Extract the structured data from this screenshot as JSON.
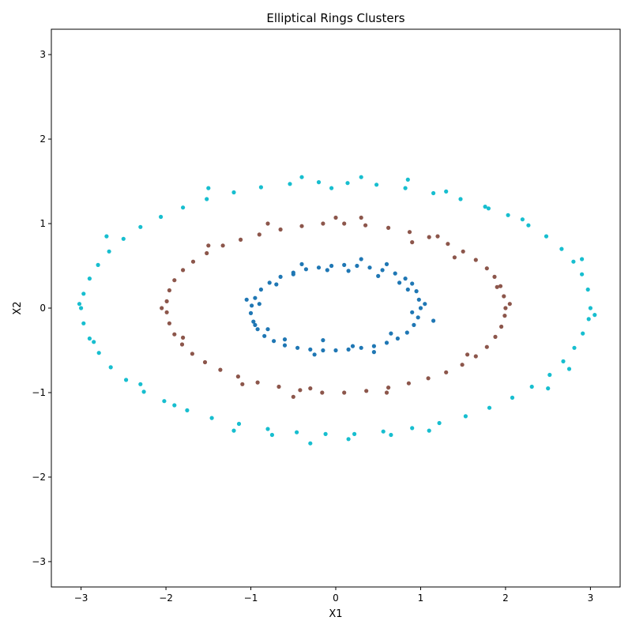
{
  "chart_data": {
    "type": "scatter",
    "title": "Elliptical Rings Clusters",
    "xlabel": "X1",
    "ylabel": "X2",
    "xlim": [
      -3.35,
      3.35
    ],
    "ylim": [
      -3.3,
      3.3
    ],
    "xticks": [
      -3,
      -2,
      -1,
      0,
      1,
      2,
      3
    ],
    "yticks": [
      -3,
      -2,
      -1,
      0,
      1,
      2,
      3
    ],
    "tick_labels_x": [
      "−3",
      "−2",
      "−1",
      "0",
      "1",
      "2",
      "3"
    ],
    "tick_labels_y": [
      "−3",
      "−2",
      "−1",
      "0",
      "1",
      "2",
      "3"
    ],
    "grid": false,
    "legend": "none",
    "series": [
      {
        "color": "#1f77b4",
        "points": [
          [
            1.0,
            0.0
          ],
          [
            0.98,
            0.1
          ],
          [
            0.95,
            0.2
          ],
          [
            0.9,
            0.29
          ],
          [
            0.82,
            0.35
          ],
          [
            0.7,
            0.41
          ],
          [
            0.55,
            0.45
          ],
          [
            0.4,
            0.48
          ],
          [
            0.25,
            0.5
          ],
          [
            0.1,
            0.51
          ],
          [
            -0.05,
            0.5
          ],
          [
            -0.2,
            0.48
          ],
          [
            -0.35,
            0.46
          ],
          [
            -0.5,
            0.42
          ],
          [
            -0.65,
            0.37
          ],
          [
            -0.78,
            0.3
          ],
          [
            -0.88,
            0.22
          ],
          [
            -0.95,
            0.12
          ],
          [
            -0.99,
            0.03
          ],
          [
            -1.0,
            -0.06
          ],
          [
            -0.97,
            -0.16
          ],
          [
            -0.92,
            -0.25
          ],
          [
            -0.84,
            -0.33
          ],
          [
            -0.73,
            -0.39
          ],
          [
            -0.6,
            -0.44
          ],
          [
            -0.45,
            -0.47
          ],
          [
            -0.3,
            -0.49
          ],
          [
            -0.15,
            -0.5
          ],
          [
            0.0,
            -0.5
          ],
          [
            0.15,
            -0.49
          ],
          [
            0.3,
            -0.47
          ],
          [
            0.45,
            -0.45
          ],
          [
            0.6,
            -0.41
          ],
          [
            0.73,
            -0.36
          ],
          [
            0.84,
            -0.29
          ],
          [
            0.92,
            -0.2
          ],
          [
            0.97,
            -0.11
          ],
          [
            0.3,
            0.58
          ],
          [
            -0.1,
            0.45
          ],
          [
            0.6,
            0.52
          ],
          [
            -0.5,
            0.4
          ],
          [
            -0.9,
            0.05
          ],
          [
            0.9,
            -0.05
          ],
          [
            -0.6,
            -0.37
          ],
          [
            0.45,
            -0.52
          ],
          [
            -0.25,
            -0.55
          ],
          [
            1.05,
            0.05
          ],
          [
            -1.05,
            0.1
          ],
          [
            0.15,
            0.44
          ],
          [
            -0.4,
            0.52
          ],
          [
            0.75,
            0.3
          ],
          [
            -0.8,
            -0.25
          ],
          [
            0.65,
            -0.3
          ],
          [
            1.15,
            -0.15
          ],
          [
            -0.95,
            -0.2
          ],
          [
            0.2,
            -0.45
          ],
          [
            -0.15,
            -0.38
          ],
          [
            0.85,
            0.22
          ],
          [
            -0.7,
            0.28
          ],
          [
            0.5,
            0.38
          ]
        ]
      },
      {
        "color": "#8c564b",
        "points": [
          [
            2.0,
            0.0
          ],
          [
            1.98,
            0.14
          ],
          [
            1.94,
            0.26
          ],
          [
            1.87,
            0.37
          ],
          [
            1.78,
            0.47
          ],
          [
            1.65,
            0.57
          ],
          [
            1.5,
            0.67
          ],
          [
            1.32,
            0.76
          ],
          [
            1.1,
            0.84
          ],
          [
            0.87,
            0.9
          ],
          [
            0.62,
            0.95
          ],
          [
            0.35,
            0.98
          ],
          [
            0.1,
            1.0
          ],
          [
            -0.15,
            1.0
          ],
          [
            -0.4,
            0.97
          ],
          [
            -0.65,
            0.93
          ],
          [
            -0.9,
            0.87
          ],
          [
            -1.12,
            0.81
          ],
          [
            -1.33,
            0.74
          ],
          [
            -1.52,
            0.65
          ],
          [
            -1.68,
            0.55
          ],
          [
            -1.8,
            0.45
          ],
          [
            -1.9,
            0.33
          ],
          [
            -1.96,
            0.21
          ],
          [
            -1.99,
            0.08
          ],
          [
            -1.99,
            -0.05
          ],
          [
            -1.96,
            -0.18
          ],
          [
            -1.9,
            -0.31
          ],
          [
            -1.81,
            -0.43
          ],
          [
            -1.69,
            -0.54
          ],
          [
            -1.54,
            -0.64
          ],
          [
            -1.36,
            -0.73
          ],
          [
            -1.15,
            -0.81
          ],
          [
            -0.92,
            -0.88
          ],
          [
            -0.67,
            -0.93
          ],
          [
            -0.42,
            -0.97
          ],
          [
            -0.16,
            -1.0
          ],
          [
            0.1,
            -1.0
          ],
          [
            0.36,
            -0.98
          ],
          [
            0.62,
            -0.94
          ],
          [
            0.86,
            -0.89
          ],
          [
            1.09,
            -0.83
          ],
          [
            1.3,
            -0.76
          ],
          [
            1.49,
            -0.67
          ],
          [
            1.65,
            -0.57
          ],
          [
            1.78,
            -0.46
          ],
          [
            1.88,
            -0.34
          ],
          [
            1.95,
            -0.22
          ],
          [
            1.99,
            -0.09
          ],
          [
            0.9,
            0.78
          ],
          [
            -0.5,
            -1.05
          ],
          [
            1.2,
            0.85
          ],
          [
            -1.5,
            0.74
          ],
          [
            1.55,
            -0.55
          ],
          [
            -0.8,
            1.0
          ],
          [
            0.3,
            1.07
          ],
          [
            -1.8,
            -0.35
          ],
          [
            1.9,
            0.25
          ],
          [
            -0.3,
            -0.95
          ],
          [
            0.6,
            -1.0
          ],
          [
            -2.05,
            0.0
          ],
          [
            2.05,
            0.05
          ],
          [
            0.0,
            1.07
          ],
          [
            -1.1,
            -0.9
          ],
          [
            1.4,
            0.6
          ]
        ]
      },
      {
        "color": "#17becf",
        "points": [
          [
            3.0,
            0.0
          ],
          [
            2.97,
            0.22
          ],
          [
            2.9,
            0.4
          ],
          [
            2.8,
            0.55
          ],
          [
            2.66,
            0.7
          ],
          [
            2.48,
            0.85
          ],
          [
            2.27,
            0.98
          ],
          [
            2.03,
            1.1
          ],
          [
            1.76,
            1.2
          ],
          [
            1.47,
            1.29
          ],
          [
            1.15,
            1.36
          ],
          [
            0.82,
            1.42
          ],
          [
            0.48,
            1.46
          ],
          [
            0.14,
            1.48
          ],
          [
            -0.2,
            1.49
          ],
          [
            -0.54,
            1.47
          ],
          [
            -0.88,
            1.43
          ],
          [
            -1.2,
            1.37
          ],
          [
            -1.52,
            1.29
          ],
          [
            -1.8,
            1.19
          ],
          [
            -2.06,
            1.08
          ],
          [
            -2.3,
            0.96
          ],
          [
            -2.5,
            0.82
          ],
          [
            -2.67,
            0.67
          ],
          [
            -2.8,
            0.51
          ],
          [
            -2.9,
            0.35
          ],
          [
            -2.97,
            0.17
          ],
          [
            -3.0,
            0.0
          ],
          [
            -2.97,
            -0.18
          ],
          [
            -2.9,
            -0.36
          ],
          [
            -2.79,
            -0.53
          ],
          [
            -2.65,
            -0.7
          ],
          [
            -2.47,
            -0.85
          ],
          [
            -2.26,
            -0.99
          ],
          [
            -2.02,
            -1.1
          ],
          [
            -1.75,
            -1.21
          ],
          [
            -1.46,
            -1.3
          ],
          [
            -1.14,
            -1.37
          ],
          [
            -0.8,
            -1.43
          ],
          [
            -0.46,
            -1.47
          ],
          [
            -0.12,
            -1.49
          ],
          [
            0.22,
            -1.49
          ],
          [
            0.56,
            -1.46
          ],
          [
            0.9,
            -1.42
          ],
          [
            1.22,
            -1.36
          ],
          [
            1.53,
            -1.28
          ],
          [
            1.81,
            -1.18
          ],
          [
            2.08,
            -1.06
          ],
          [
            2.31,
            -0.93
          ],
          [
            2.52,
            -0.79
          ],
          [
            2.68,
            -0.63
          ],
          [
            2.81,
            -0.47
          ],
          [
            2.91,
            -0.3
          ],
          [
            2.98,
            -0.13
          ],
          [
            3.05,
            -0.08
          ],
          [
            -3.02,
            0.05
          ],
          [
            0.3,
            1.55
          ],
          [
            -0.3,
            -1.6
          ],
          [
            0.85,
            1.52
          ],
          [
            -0.75,
            -1.5
          ],
          [
            1.3,
            1.38
          ],
          [
            -1.5,
            1.42
          ],
          [
            2.2,
            1.05
          ],
          [
            -2.3,
            -0.9
          ],
          [
            2.5,
            -0.95
          ],
          [
            -2.7,
            0.85
          ],
          [
            1.1,
            -1.45
          ],
          [
            -0.4,
            1.55
          ],
          [
            2.9,
            0.58
          ],
          [
            -2.85,
            -0.4
          ],
          [
            0.15,
            -1.55
          ],
          [
            -1.2,
            -1.45
          ],
          [
            1.8,
            1.18
          ],
          [
            -1.9,
            -1.15
          ],
          [
            2.75,
            -0.72
          ],
          [
            -0.05,
            1.42
          ],
          [
            0.65,
            -1.5
          ]
        ]
      }
    ]
  }
}
